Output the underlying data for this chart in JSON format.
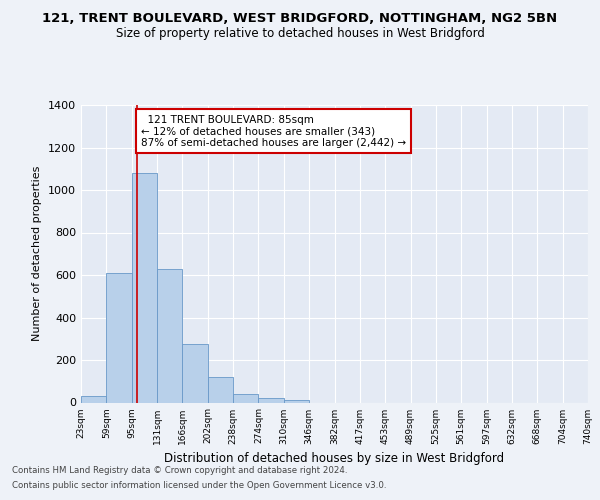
{
  "title_line1": "121, TRENT BOULEVARD, WEST BRIDGFORD, NOTTINGHAM, NG2 5BN",
  "title_line2": "Size of property relative to detached houses in West Bridgford",
  "xlabel": "Distribution of detached houses by size in West Bridgford",
  "ylabel": "Number of detached properties",
  "bins": [
    "23sqm",
    "59sqm",
    "95sqm",
    "131sqm",
    "166sqm",
    "202sqm",
    "238sqm",
    "274sqm",
    "310sqm",
    "346sqm",
    "382sqm",
    "417sqm",
    "453sqm",
    "489sqm",
    "525sqm",
    "561sqm",
    "597sqm",
    "632sqm",
    "668sqm",
    "704sqm",
    "740sqm"
  ],
  "bar_values": [
    30,
    610,
    1080,
    630,
    275,
    120,
    38,
    22,
    10,
    0,
    0,
    0,
    0,
    0,
    0,
    0,
    0,
    0,
    0,
    0
  ],
  "bar_color": "#b8d0ea",
  "bar_edge_color": "#6898c8",
  "property_line_x": 1.72,
  "annotation_text": "  121 TRENT BOULEVARD: 85sqm  \n← 12% of detached houses are smaller (343)\n87% of semi-detached houses are larger (2,442) →",
  "annotation_box_color": "#ffffff",
  "annotation_box_edge_color": "#cc0000",
  "line_color": "#cc0000",
  "ylim": [
    0,
    1400
  ],
  "yticks": [
    0,
    200,
    400,
    600,
    800,
    1000,
    1200,
    1400
  ],
  "footer_line1": "Contains HM Land Registry data © Crown copyright and database right 2024.",
  "footer_line2": "Contains public sector information licensed under the Open Government Licence v3.0.",
  "background_color": "#eef2f8",
  "plot_background_color": "#e4eaf4"
}
